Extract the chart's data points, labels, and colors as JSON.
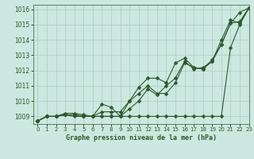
{
  "title": "Graphe pression niveau de la mer (hPa)",
  "xlim": [
    -0.5,
    23
  ],
  "ylim": [
    1008.5,
    1016.3
  ],
  "yticks": [
    1009,
    1010,
    1011,
    1012,
    1013,
    1014,
    1015,
    1016
  ],
  "xticks": [
    0,
    1,
    2,
    3,
    4,
    5,
    6,
    7,
    8,
    9,
    10,
    11,
    12,
    13,
    14,
    15,
    16,
    17,
    18,
    19,
    20,
    21,
    22,
    23
  ],
  "bg_color": "#cce8e0",
  "grid_color": "#aaccc0",
  "line_color": "#2d5a27",
  "marker": "D",
  "marker_size": 2.5,
  "linewidth": 0.8,
  "series": [
    [
      1008.7,
      1009.0,
      1009.0,
      1009.1,
      1009.0,
      1009.0,
      1009.0,
      1009.0,
      1009.0,
      1009.0,
      1009.5,
      1010.0,
      1010.8,
      1010.4,
      1011.0,
      1011.5,
      1012.6,
      1012.1,
      1012.2,
      1012.6,
      1013.7,
      1015.1,
      1015.2,
      1016.1
    ],
    [
      1008.7,
      1009.0,
      1009.0,
      1009.1,
      1009.1,
      1009.0,
      1009.0,
      1009.8,
      1009.6,
      1009.0,
      1010.0,
      1010.5,
      1011.0,
      1010.5,
      1010.5,
      1011.2,
      1012.5,
      1012.2,
      1012.1,
      1012.6,
      1014.0,
      1015.3,
      1015.1,
      1016.1
    ],
    [
      1008.7,
      1009.0,
      1009.0,
      1009.2,
      1009.2,
      1009.1,
      1009.0,
      1009.3,
      1009.3,
      1009.3,
      1010.0,
      1010.9,
      1011.5,
      1011.5,
      1011.2,
      1012.5,
      1012.8,
      1012.2,
      1012.1,
      1012.7,
      1013.7,
      1015.1,
      1015.8,
      1016.1
    ],
    [
      1008.7,
      1009.0,
      1009.0,
      1009.1,
      1009.1,
      1009.0,
      1009.0,
      1009.0,
      1009.0,
      1009.0,
      1009.0,
      1009.0,
      1009.0,
      1009.0,
      1009.0,
      1009.0,
      1009.0,
      1009.0,
      1009.0,
      1009.0,
      1009.0,
      1013.5,
      1015.0,
      1016.1
    ]
  ]
}
